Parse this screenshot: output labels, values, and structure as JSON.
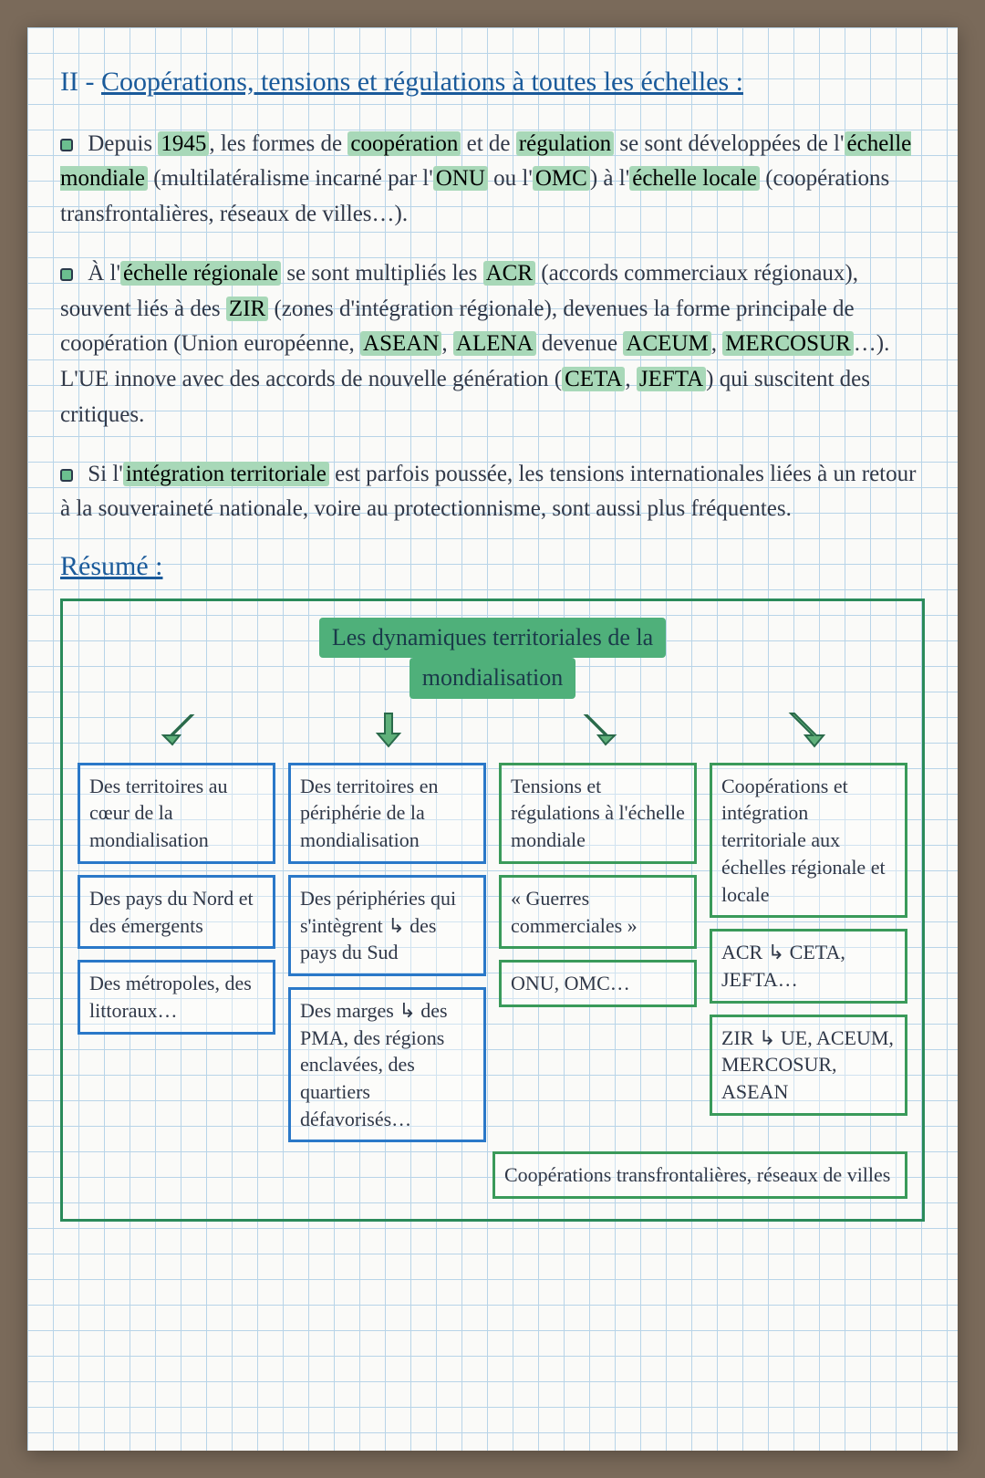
{
  "colors": {
    "ink": "#2a3a4a",
    "blue_ink": "#1a5a9a",
    "highlight": "#a8d8b8",
    "diagram_border": "#2a8a5a",
    "arrow_fill": "#5fb07a",
    "arrow_stroke": "#2a6a4a",
    "box_blue": "#2a78c8",
    "box_green": "#3a9a5a",
    "grid_line": "#b8d4e8",
    "paper_bg": "#fafaf8",
    "desk_bg": "#7a6a5a"
  },
  "title_prefix": "II - ",
  "title_text": "Coopérations, tensions et régulations à toutes les échelles :",
  "para1_html": "Depuis <mark class='hl'>1945</mark>, les formes de <mark class='hl'>coopération</mark> et de <mark class='hl'>régulation</mark> se sont développées de l'<mark class='hl'>échelle mondiale</mark> (multilatéralisme incarné par l'<mark class='hl'>ONU</mark> ou l'<mark class='hl'>OMC</mark>) à l'<mark class='hl'>échelle locale</mark> (coopérations transfrontalières, réseaux de villes…).",
  "para2_html": "À l'<mark class='hl'>échelle régionale</mark> se sont multipliés les <mark class='hl'>ACR</mark> (accords commerciaux régionaux), souvent liés à des <mark class='hl'>ZIR</mark> (zones d'intégration régionale), devenues la forme principale de coopération (Union européenne, <mark class='hl'>ASEAN</mark>, <mark class='hl'>ALENA</mark> devenue <mark class='hl'>ACEUM</mark>, <mark class='hl'>MERCOSUR</mark>…). L'UE innove avec des accords de nouvelle génération (<mark class='hl'>CETA</mark>, <mark class='hl'>JEFTA</mark>) qui suscitent des critiques.",
  "para3_html": "Si l'<mark class='hl'>intégration territoriale</mark> est parfois poussée, les tensions internationales liées à un retour à la souveraineté nationale, voire au protectionnisme, sont aussi plus fréquentes.",
  "resume_label": "Résumé :",
  "diagram": {
    "head_line1": "Les dynamiques territoriales de la",
    "head_line2": "mondialisation",
    "columns": [
      {
        "color": "blue",
        "boxes": [
          "Des territoires au cœur de la mondialisation",
          "Des pays du Nord et des émergents",
          "Des métropoles, des littoraux…"
        ]
      },
      {
        "color": "blue",
        "boxes": [
          "Des territoires en périphérie de la mondialisation",
          "Des périphéries qui s'intègrent ↳ des pays du Sud",
          "Des marges ↳ des PMA, des régions enclavées, des quartiers défavorisés…"
        ]
      },
      {
        "color": "green",
        "boxes": [
          "Tensions et régulations à l'échelle mondiale",
          "« Guerres commerciales »",
          "ONU, OMC…"
        ]
      },
      {
        "color": "green",
        "boxes": [
          "Coopérations et intégration territoriale aux échelles régionale et locale",
          "ACR ↳ CETA, JEFTA…",
          "ZIR ↳ UE, ACEUM, MERCOSUR, ASEAN"
        ]
      }
    ],
    "bottom_wide": "Coopérations transfrontalières, réseaux de villes"
  }
}
